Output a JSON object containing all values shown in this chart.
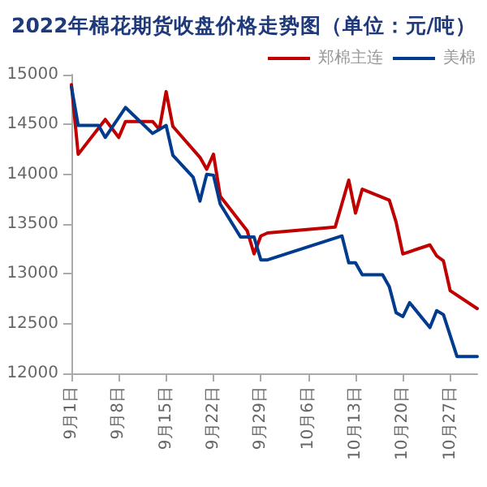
{
  "chart_data": {
    "type": "line",
    "title": "2022年棉花期货收盘价格走势图（单位：元/吨）",
    "legend": "top right",
    "marker": "none",
    "line_style": "solid",
    "grid": false,
    "xlim": [
      "--09-01",
      "--10-31"
    ],
    "xticks": [
      {
        "value": "--09-01",
        "label": "9月1日"
      },
      {
        "value": "--09-08",
        "label": "9月8日"
      },
      {
        "value": "--09-15",
        "label": "9月15日"
      },
      {
        "value": "--09-22",
        "label": "9月22日"
      },
      {
        "value": "--09-29",
        "label": "9月29日"
      },
      {
        "value": "--10-06",
        "label": "10月6日"
      },
      {
        "value": "--10-13",
        "label": "10月13日"
      },
      {
        "value": "--10-20",
        "label": "10月20日"
      },
      {
        "value": "--10-27",
        "label": "10月27日"
      }
    ],
    "ylim": [
      12000,
      15000
    ],
    "yticks": [
      12000,
      12500,
      13000,
      13500,
      14000,
      14500,
      15000
    ],
    "series": [
      {
        "name": "郑棉主连",
        "color": "#c00000",
        "x": [
          "--09-01",
          "--09-02",
          "--09-06",
          "--09-08",
          "--09-09",
          "--09-13",
          "--09-14",
          "--09-15",
          "--09-16",
          "--09-20",
          "--09-21",
          "--09-22",
          "--09-23",
          "--09-27",
          "--09-28",
          "--09-29",
          "--09-30",
          "--10-10",
          "--10-12",
          "--10-13",
          "--10-14",
          "--10-18",
          "--10-19",
          "--10-20",
          "--10-24",
          "--10-25",
          "--10-26",
          "--10-27",
          "--10-31"
        ],
        "values": [
          14900,
          14200,
          14550,
          14370,
          14530,
          14530,
          14450,
          14830,
          14480,
          14170,
          14050,
          14200,
          13780,
          13430,
          13200,
          13380,
          13410,
          13470,
          13940,
          13610,
          13850,
          13740,
          13520,
          13200,
          13290,
          13180,
          13130,
          12830,
          12650
        ]
      },
      {
        "name": "美棉",
        "color": "#003b8e",
        "x": [
          "--09-01",
          "--09-02",
          "--09-05",
          "--09-06",
          "--09-09",
          "--09-13",
          "--09-15",
          "--09-16",
          "--09-19",
          "--09-20",
          "--09-21",
          "--09-22",
          "--09-23",
          "--09-26",
          "--09-28",
          "--09-29",
          "--09-30",
          "--10-11",
          "--10-12",
          "--10-13",
          "--10-14",
          "--10-17",
          "--10-18",
          "--10-19",
          "--10-20",
          "--10-21",
          "--10-24",
          "--10-25",
          "--10-26",
          "--10-28",
          "--10-31"
        ],
        "values": [
          14880,
          14490,
          14490,
          14370,
          14670,
          14410,
          14490,
          14190,
          13970,
          13730,
          14000,
          13990,
          13700,
          13370,
          13370,
          13140,
          13140,
          13380,
          13110,
          13110,
          12990,
          12990,
          12870,
          12610,
          12570,
          12710,
          12460,
          12630,
          12590,
          12170,
          12170
        ]
      }
    ]
  }
}
